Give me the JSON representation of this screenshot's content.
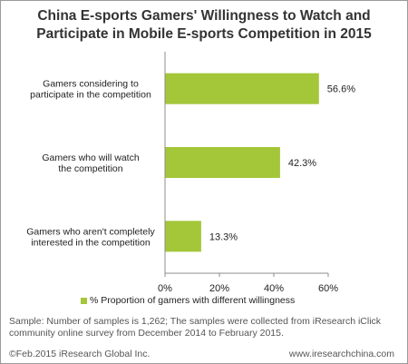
{
  "title_lines": [
    "China E-sports Gamers' Willingness to Watch and",
    "Participate in Mobile E-sports Competition in 2015"
  ],
  "chart_data": {
    "type": "bar",
    "orientation": "horizontal",
    "categories": [
      [
        "Gamers considering to",
        "participate in the competition"
      ],
      [
        "Gamers who will watch",
        "the competition"
      ],
      [
        "Gamers who aren't completely",
        "interested in the competition"
      ]
    ],
    "series": [
      {
        "name": "% Proportion of gamers with different willingness",
        "values": [
          56.6,
          42.3,
          13.3
        ],
        "data_labels": [
          "56.6%",
          "42.3%",
          "13.3%"
        ]
      }
    ],
    "x_ticks": [
      "0%",
      "20%",
      "40%",
      "60%"
    ],
    "xlim": [
      0,
      60
    ],
    "grid": false,
    "legend_position": "bottom",
    "bar_color": "#a4c639"
  },
  "legend_label": "% Proportion of gamers with different willingness",
  "sample_note": "Sample: Number of samples is 1,262; The samples were collected from iResearch iClick community online survey from December 2014 to February 2015.",
  "footer": {
    "copyright": "©Feb.2015 iResearch Global Inc.",
    "website": "www.iresearchchina.com"
  }
}
